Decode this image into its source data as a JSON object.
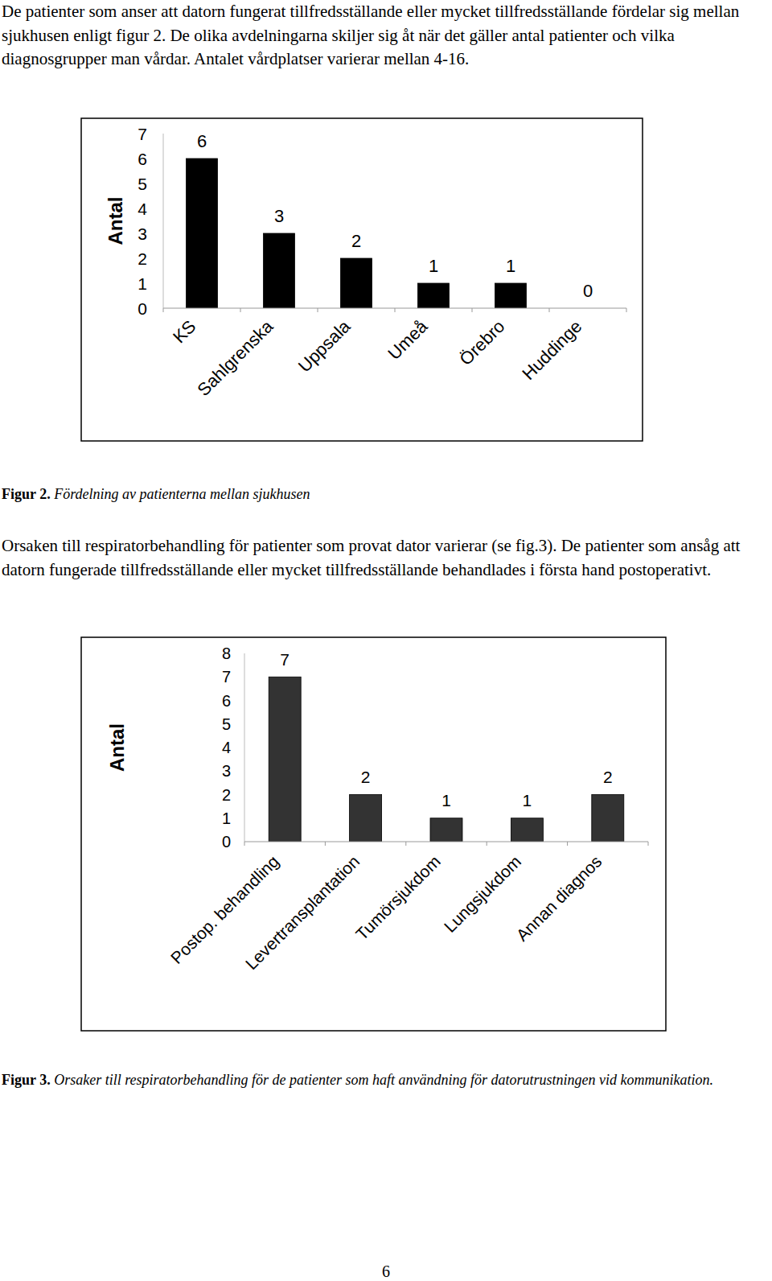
{
  "paragraphs": [
    "De patienter som anser att datorn fungerat tillfredsställande eller mycket tillfredsställande fördelar sig mellan sjukhusen enligt figur 2. De olika avdelningarna skiljer sig åt när det gäller antal patienter och vilka diagnosgrupper man vårdar. Antalet vårdplatser varierar mellan 4-16.",
    "Orsaken till respiratorbehandling för patienter som provat dator varierar (se fig.3). De patienter som ansåg att datorn fungerade tillfredsställande eller mycket tillfredsställande behandlades i första hand postoperativt."
  ],
  "captions": [
    {
      "label": "Figur 2.",
      "text": "Fördelning av patienterna mellan sjukhusen"
    },
    {
      "label": "Figur 3.",
      "text": "Orsaker till respiratorbehandling för de patienter som haft användning för datorutrustningen vid kommunikation."
    }
  ],
  "page_number": 6,
  "chart_data": [
    {
      "type": "bar",
      "y_label": "Antal",
      "categories": [
        "KS",
        "Sahlgrenska",
        "Uppsala",
        "Umeå",
        "Örebro",
        "Huddinge"
      ],
      "values": [
        6,
        3,
        2,
        1,
        1,
        0
      ],
      "color": "#000000",
      "ylim": [
        0,
        7
      ],
      "yticks": [
        0,
        1,
        2,
        3,
        4,
        5,
        6,
        7
      ],
      "grid": false,
      "data_labels": true
    },
    {
      "type": "bar",
      "y_label": "Antal",
      "categories": [
        "Postop. behandling",
        "Levertransplantation",
        "Tumörsjukdom",
        "Lungsjukdom",
        "Annan diagnos"
      ],
      "values": [
        7,
        2,
        1,
        1,
        2
      ],
      "color": "#333333",
      "ylim": [
        0,
        8
      ],
      "yticks": [
        0,
        1,
        2,
        3,
        4,
        5,
        6,
        7,
        8
      ],
      "grid": false,
      "data_labels": true
    }
  ]
}
